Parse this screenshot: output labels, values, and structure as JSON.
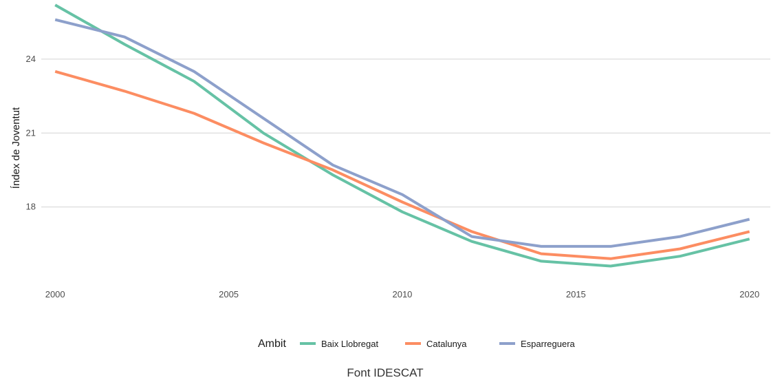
{
  "chart_data": {
    "type": "line",
    "title": "",
    "xlabel": "",
    "ylabel": "Índex de Joventut",
    "x": [
      2000,
      2002,
      2004,
      2006,
      2008,
      2010,
      2012,
      2014,
      2016,
      2018,
      2020
    ],
    "xticks": [
      "2000",
      "2005",
      "2010",
      "2015",
      "2020"
    ],
    "yticks": [
      "18",
      "21",
      "24"
    ],
    "xlim": [
      1999.6,
      2020.6
    ],
    "ylim": [
      15.0,
      26.4
    ],
    "grid": "horizontal-major",
    "legend_placement": "bottom",
    "legend_title": "Ambit",
    "caption": "Font IDESCAT",
    "series": [
      {
        "name": "Baix Llobregat",
        "color": "#66c2a5",
        "values": [
          26.2,
          24.6,
          23.1,
          21.0,
          19.3,
          17.8,
          16.6,
          15.8,
          15.6,
          16.0,
          16.7
        ]
      },
      {
        "name": "Catalunya",
        "color": "#fc8d62",
        "values": [
          23.5,
          22.7,
          21.8,
          20.6,
          19.5,
          18.2,
          17.0,
          16.1,
          15.9,
          16.3,
          17.0
        ]
      },
      {
        "name": "Esparreguera",
        "color": "#8da0cb",
        "values": [
          25.6,
          24.9,
          23.5,
          21.6,
          19.7,
          18.5,
          16.8,
          16.4,
          16.4,
          16.8,
          17.5
        ]
      }
    ]
  }
}
